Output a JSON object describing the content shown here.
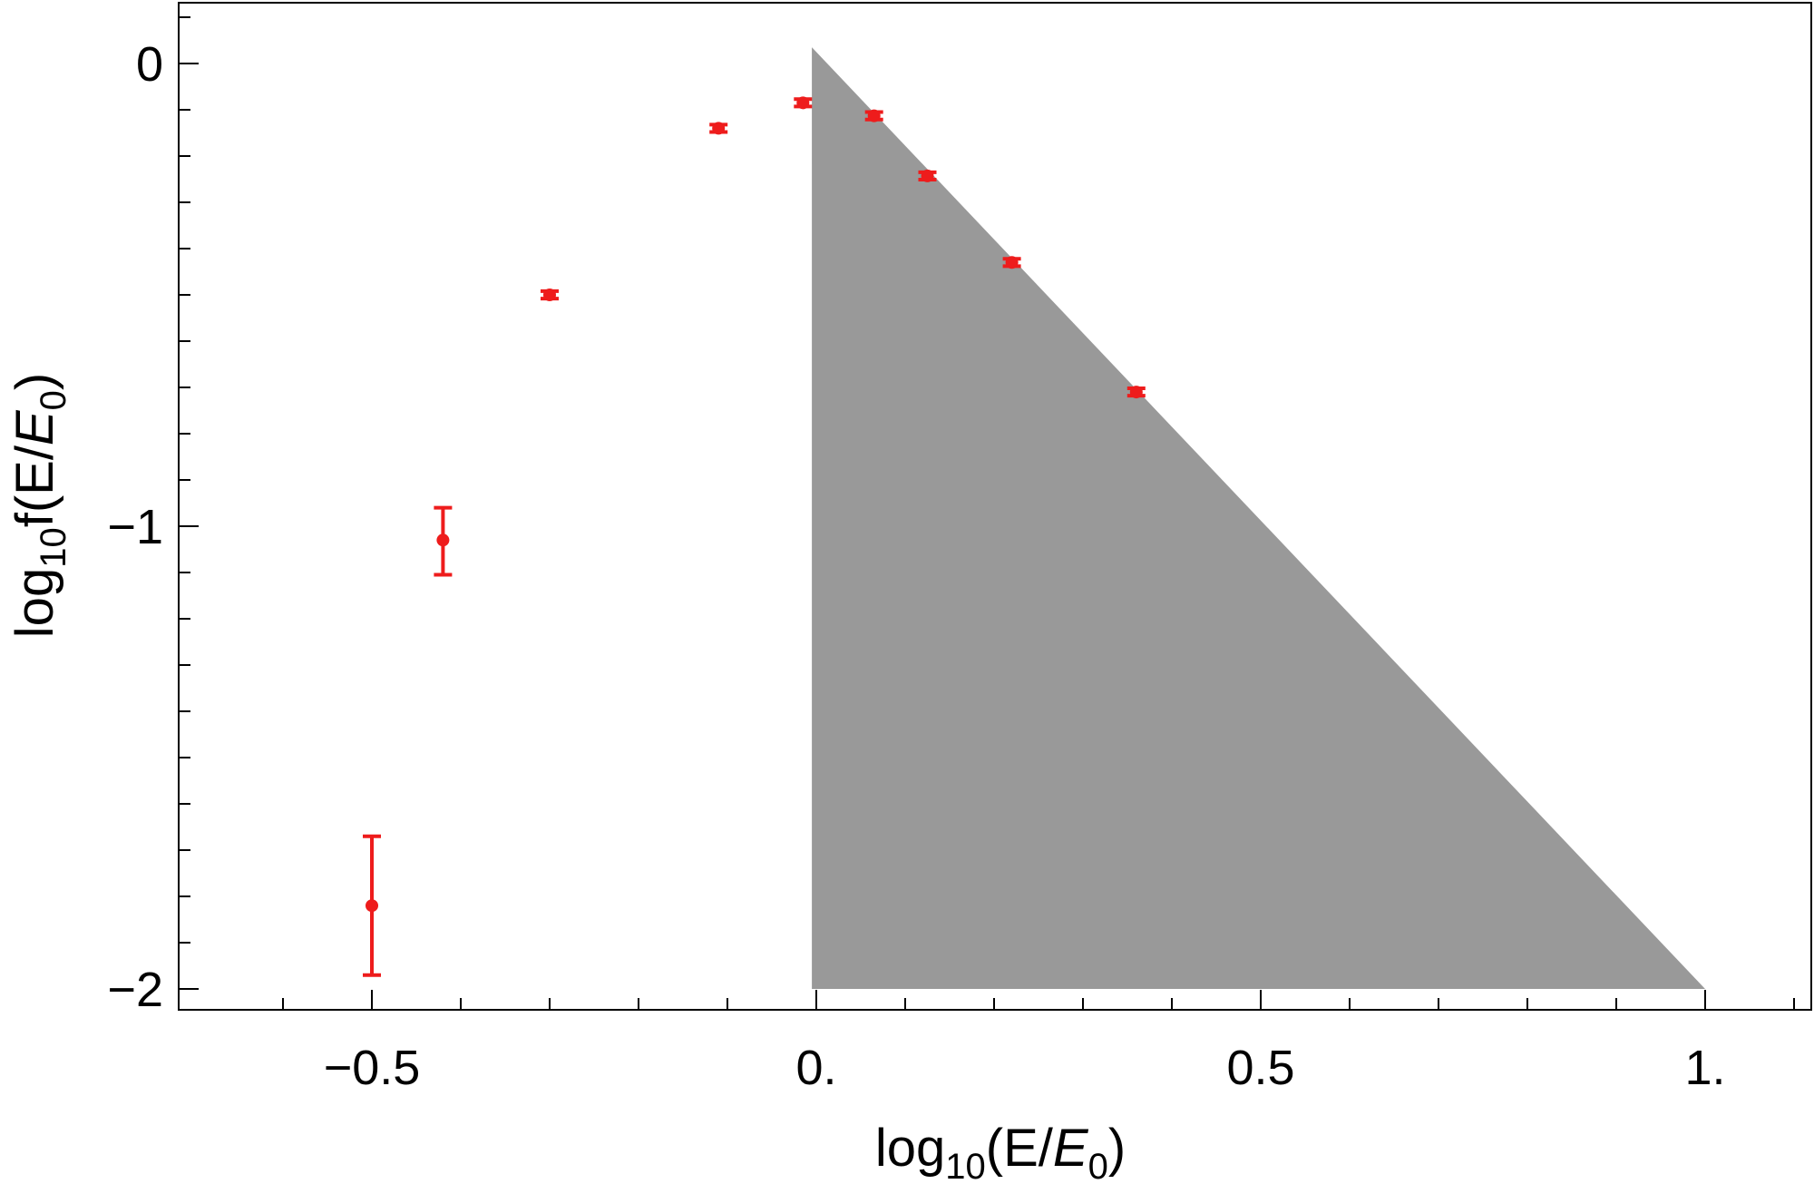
{
  "chart_data": {
    "type": "scatter",
    "title": "",
    "xlabel": {
      "pre": "log",
      "sub": "10",
      "mid": "(E/",
      "ital": "E",
      "ital_sub": "0",
      "post": ")"
    },
    "ylabel": {
      "pre": "log",
      "sub": "10",
      "mid": "f(E/",
      "ital": "E",
      "ital_sub": "0",
      "post": ")"
    },
    "xlim": [
      -0.7,
      1.1
    ],
    "ylim": [
      -2.03,
      0.14
    ],
    "grid": false,
    "x_ticks": [
      {
        "value": -0.5,
        "label": "−0.5"
      },
      {
        "value": 0,
        "label": "0."
      },
      {
        "value": 0.5,
        "label": "0.5"
      },
      {
        "value": 1,
        "label": "1."
      }
    ],
    "y_ticks": [
      {
        "value": 0,
        "label": "0"
      },
      {
        "value": -1,
        "label": "−1"
      },
      {
        "value": -2,
        "label": "−2"
      }
    ],
    "x_minor_step": 0.1,
    "y_minor_step": 0.1,
    "shaded_region": {
      "color": "#999999",
      "points": [
        [
          -0.005,
          0.035
        ],
        [
          1.0,
          -2.0
        ],
        [
          -0.005,
          -2.0
        ]
      ]
    },
    "series": [
      {
        "color": "#ee1c1c",
        "points": [
          {
            "x": -0.5,
            "y": -1.82,
            "yerr_low": 0.15,
            "yerr_high": 0.15
          },
          {
            "x": -0.42,
            "y": -1.03,
            "yerr_low": 0.075,
            "yerr_high": 0.07
          },
          {
            "x": -0.3,
            "y": -0.5,
            "yerr_low": 0.008,
            "yerr_high": 0.008
          },
          {
            "x": -0.11,
            "y": -0.14,
            "yerr_low": 0.008,
            "yerr_high": 0.008
          },
          {
            "x": -0.015,
            "y": -0.085,
            "yerr_low": 0.008,
            "yerr_high": 0.008
          },
          {
            "x": 0.065,
            "y": -0.113,
            "yerr_low": 0.008,
            "yerr_high": 0.008
          },
          {
            "x": 0.125,
            "y": -0.243,
            "yerr_low": 0.008,
            "yerr_high": 0.008
          },
          {
            "x": 0.22,
            "y": -0.43,
            "yerr_low": 0.008,
            "yerr_high": 0.008
          },
          {
            "x": 0.36,
            "y": -0.71,
            "yerr_low": 0.008,
            "yerr_high": 0.008
          }
        ]
      }
    ]
  }
}
